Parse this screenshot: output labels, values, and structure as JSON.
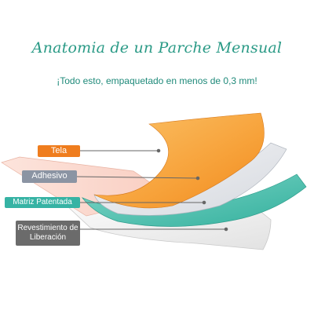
{
  "header": {
    "title": "Anatomia de un Parche Mensual",
    "subtitle": "¡Todo esto, empaquetado en menos de 0,3 mm!"
  },
  "layers": {
    "tela": "Tela",
    "adhesivo": "Adhesivo",
    "matriz": "Matriz Patentada",
    "revestimiento": "Revestimiento de Liberación"
  },
  "colors": {
    "tela": "#f7a23a",
    "adhesivo": "#e9ebef",
    "matriz": "#4fc3b1",
    "revestimiento": "#f2f2f2",
    "title": "#2a9a86"
  }
}
